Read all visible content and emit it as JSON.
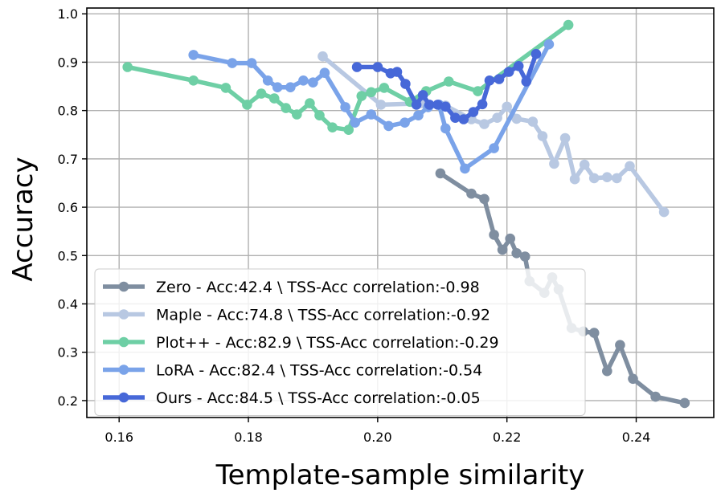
{
  "chart_data": {
    "type": "line",
    "title": "",
    "xlabel": "Template-sample similarity",
    "ylabel": "Accuracy",
    "xlim": [
      0.155,
      0.252
    ],
    "ylim": [
      0.165,
      1.012
    ],
    "xticks": [
      0.16,
      0.18,
      0.2,
      0.22,
      0.24
    ],
    "xtick_labels": [
      "0.16",
      "0.18",
      "0.20",
      "0.22",
      "0.24"
    ],
    "yticks": [
      0.2,
      0.3,
      0.4,
      0.5,
      0.6,
      0.7,
      0.8,
      0.9,
      1.0
    ],
    "ytick_labels": [
      "0.2",
      "0.3",
      "0.4",
      "0.5",
      "0.6",
      "0.7",
      "0.8",
      "0.9",
      "1.0"
    ],
    "grid": true,
    "legend_position": "lower-left",
    "series": [
      {
        "name": "Zero - Acc:42.4 \\ TSS-Acc correlation:-0.98",
        "color": "#7f8ea0",
        "x": [
          0.2097,
          0.2145,
          0.2165,
          0.218,
          0.2193,
          0.2205,
          0.2215,
          0.2228,
          0.2235,
          0.2258,
          0.227,
          0.228,
          0.23,
          0.2318,
          0.2335,
          0.2355,
          0.2375,
          0.2395,
          0.243,
          0.2475
        ],
        "y": [
          0.67,
          0.628,
          0.617,
          0.543,
          0.512,
          0.535,
          0.505,
          0.498,
          0.447,
          0.423,
          0.455,
          0.43,
          0.35,
          0.343,
          0.34,
          0.261,
          0.315,
          0.245,
          0.208,
          0.195
        ]
      },
      {
        "name": "Maple - Acc:74.8 \\ TSS-Acc correlation:-0.92",
        "color": "#b8c8e2",
        "x": [
          0.1915,
          0.2005,
          0.207,
          0.2105,
          0.2145,
          0.2165,
          0.2185,
          0.22,
          0.2215,
          0.224,
          0.2255,
          0.2273,
          0.229,
          0.2305,
          0.232,
          0.2335,
          0.2355,
          0.237,
          0.239,
          0.2443
        ],
        "y": [
          0.912,
          0.812,
          0.815,
          0.81,
          0.782,
          0.772,
          0.785,
          0.808,
          0.783,
          0.777,
          0.747,
          0.69,
          0.743,
          0.658,
          0.688,
          0.66,
          0.662,
          0.66,
          0.685,
          0.59
        ]
      },
      {
        "name": "Plot++ - Acc:82.9 \\ TSS-Acc correlation:-0.29",
        "color": "#6ecfa5",
        "x": [
          0.1613,
          0.1715,
          0.1765,
          0.1798,
          0.182,
          0.184,
          0.1858,
          0.1875,
          0.1895,
          0.191,
          0.193,
          0.1955,
          0.1975,
          0.199,
          0.201,
          0.205,
          0.2075,
          0.211,
          0.2155,
          0.2295
        ],
        "y": [
          0.89,
          0.862,
          0.847,
          0.812,
          0.835,
          0.825,
          0.805,
          0.792,
          0.815,
          0.79,
          0.765,
          0.76,
          0.83,
          0.838,
          0.847,
          0.818,
          0.84,
          0.86,
          0.84,
          0.977
        ]
      },
      {
        "name": "LoRA - Acc:82.4 \\ TSS-Acc correlation:-0.54",
        "color": "#7aa3e9",
        "x": [
          0.1715,
          0.1775,
          0.1805,
          0.183,
          0.1845,
          0.1865,
          0.1885,
          0.19,
          0.1918,
          0.195,
          0.1965,
          0.199,
          0.2017,
          0.2042,
          0.2063,
          0.2078,
          0.2095,
          0.2105,
          0.2135,
          0.218,
          0.2265
        ],
        "y": [
          0.915,
          0.898,
          0.898,
          0.862,
          0.848,
          0.848,
          0.862,
          0.858,
          0.878,
          0.807,
          0.775,
          0.792,
          0.768,
          0.775,
          0.79,
          0.807,
          0.812,
          0.763,
          0.68,
          0.722,
          0.937
        ]
      },
      {
        "name": "Ours - Acc:84.5 \\ TSS-Acc correlation:-0.05",
        "color": "#4768d8",
        "x": [
          0.1968,
          0.2,
          0.202,
          0.203,
          0.2043,
          0.206,
          0.207,
          0.208,
          0.2093,
          0.2105,
          0.212,
          0.2133,
          0.2148,
          0.2162,
          0.2173,
          0.2188,
          0.2203,
          0.2218,
          0.223,
          0.2245
        ],
        "y": [
          0.89,
          0.89,
          0.877,
          0.88,
          0.855,
          0.812,
          0.832,
          0.812,
          0.812,
          0.808,
          0.785,
          0.782,
          0.797,
          0.813,
          0.862,
          0.865,
          0.88,
          0.892,
          0.86,
          0.917
        ]
      }
    ]
  }
}
